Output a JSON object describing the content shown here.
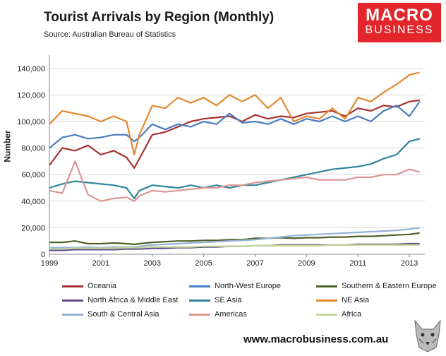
{
  "header": {
    "title": "Tourist Arrivals by Region (Monthly)",
    "subtitle": "Source: Australian Bureau of Statistics",
    "logo_line1": "MACRO",
    "logo_line2": "BUSINESS"
  },
  "footer": {
    "url": "www.macrobusiness.com.au"
  },
  "chart_data": {
    "type": "line",
    "title": "Tourist Arrivals by Region (Monthly)",
    "xlabel": "",
    "ylabel": "Number",
    "xlim": [
      1999,
      2013.6
    ],
    "ylim": [
      0,
      150000
    ],
    "grid": "horizontal",
    "x_ticks": [
      1999,
      2001,
      2003,
      2005,
      2007,
      2009,
      2011,
      2013
    ],
    "y_ticks": [
      0,
      20000,
      40000,
      60000,
      80000,
      100000,
      120000,
      140000
    ],
    "y_tick_labels": [
      "0",
      "20,000",
      "40,000",
      "60,000",
      "80,000",
      "100,000",
      "120,000",
      "140,000"
    ],
    "x": [
      1999,
      1999.5,
      2000,
      2000.5,
      2001,
      2001.5,
      2002,
      2002.3,
      2002.5,
      2003,
      2003.5,
      2004,
      2004.5,
      2005,
      2005.5,
      2006,
      2006.5,
      2007,
      2007.5,
      2008,
      2008.5,
      2009,
      2009.5,
      2010,
      2010.5,
      2011,
      2011.5,
      2012,
      2012.5,
      2013,
      2013.4
    ],
    "series": [
      {
        "name": "Oceania",
        "color": "#a83232",
        "values": [
          67000,
          80000,
          78000,
          82000,
          75000,
          78000,
          73000,
          65000,
          72000,
          90000,
          92000,
          96000,
          100000,
          102000,
          103000,
          104000,
          100000,
          105000,
          102000,
          104000,
          103000,
          106000,
          107000,
          108000,
          104000,
          110000,
          108000,
          112000,
          111000,
          115000,
          116000
        ]
      },
      {
        "name": "North-West Europe",
        "color": "#4a7ebf",
        "values": [
          80000,
          88000,
          90000,
          87000,
          88000,
          90000,
          90000,
          85000,
          88000,
          98000,
          94000,
          98000,
          96000,
          100000,
          98000,
          106000,
          99000,
          100000,
          98000,
          102000,
          98000,
          102000,
          100000,
          104000,
          100000,
          104000,
          100000,
          108000,
          112000,
          104000,
          115000
        ]
      },
      {
        "name": "Southern & Eastern Europe",
        "color": "#4f6228",
        "values": [
          9000,
          9000,
          10000,
          8000,
          8000,
          8500,
          8000,
          7500,
          8000,
          9000,
          9500,
          10000,
          10000,
          10500,
          10500,
          11000,
          11000,
          12000,
          12000,
          12500,
          12000,
          12500,
          12500,
          13000,
          13000,
          13500,
          13500,
          14000,
          14500,
          15000,
          16000
        ]
      },
      {
        "name": "North Africa & Middle East",
        "color": "#604a8b",
        "values": [
          3000,
          3000,
          3500,
          3500,
          3500,
          3500,
          4000,
          4000,
          4000,
          4500,
          4500,
          5000,
          5000,
          5500,
          5500,
          6000,
          6000,
          6500,
          6500,
          7000,
          7000,
          7000,
          7000,
          7000,
          7000,
          7500,
          7500,
          7500,
          7500,
          8000,
          8000
        ]
      },
      {
        "name": "SE Asia",
        "color": "#31859c",
        "values": [
          50000,
          53000,
          55000,
          54000,
          53000,
          52000,
          50000,
          42000,
          48000,
          52000,
          51000,
          50000,
          52000,
          50000,
          52000,
          50000,
          52000,
          52000,
          54000,
          56000,
          58000,
          60000,
          62000,
          64000,
          65000,
          66000,
          68000,
          72000,
          75000,
          85000,
          87000
        ]
      },
      {
        "name": "NE Asia",
        "color": "#e3882f",
        "values": [
          98000,
          108000,
          106000,
          104000,
          100000,
          104000,
          100000,
          75000,
          90000,
          112000,
          110000,
          118000,
          114000,
          118000,
          112000,
          120000,
          115000,
          120000,
          110000,
          118000,
          100000,
          104000,
          102000,
          110000,
          102000,
          118000,
          115000,
          122000,
          128000,
          135000,
          137000
        ]
      },
      {
        "name": "South & Central Asia",
        "color": "#95b3d7",
        "values": [
          5000,
          5000,
          5000,
          5500,
          5000,
          5500,
          5500,
          5500,
          6000,
          7000,
          7500,
          8000,
          8500,
          9000,
          9500,
          10000,
          10500,
          11000,
          12000,
          13000,
          14000,
          14500,
          15000,
          15500,
          16000,
          16500,
          17000,
          17500,
          18000,
          19000,
          20000
        ]
      },
      {
        "name": "Americas",
        "color": "#d99694",
        "values": [
          48000,
          46000,
          70000,
          45000,
          40000,
          42000,
          43000,
          40000,
          44000,
          48000,
          47000,
          48000,
          49000,
          50000,
          50000,
          52000,
          52000,
          54000,
          55000,
          56000,
          57000,
          58000,
          56000,
          56000,
          56000,
          58000,
          58000,
          60000,
          60000,
          64000,
          62000
        ]
      },
      {
        "name": "Africa",
        "color": "#c3d69b",
        "values": [
          4000,
          4000,
          4500,
          4500,
          4500,
          4500,
          5000,
          5000,
          5000,
          5500,
          5500,
          5500,
          5500,
          6000,
          6000,
          6000,
          6000,
          6500,
          6500,
          6500,
          6500,
          6500,
          6500,
          7000,
          7000,
          7000,
          7000,
          7000,
          7000,
          7000,
          7000
        ]
      }
    ]
  }
}
